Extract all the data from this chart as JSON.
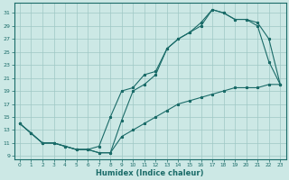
{
  "xlabel": "Humidex (Indice chaleur)",
  "bg_color": "#cce8e5",
  "grid_color": "#9fc8c4",
  "line_color": "#1a6b68",
  "xlim": [
    -0.5,
    23.5
  ],
  "ylim": [
    8.5,
    32.5
  ],
  "xticks": [
    0,
    1,
    2,
    3,
    4,
    5,
    6,
    7,
    8,
    9,
    10,
    11,
    12,
    13,
    14,
    15,
    16,
    17,
    18,
    19,
    20,
    21,
    22,
    23
  ],
  "yticks": [
    9,
    11,
    13,
    15,
    17,
    19,
    21,
    23,
    25,
    27,
    29,
    31
  ],
  "line1_x": [
    0,
    1,
    2,
    3,
    4,
    5,
    6,
    7,
    8,
    9,
    10,
    11,
    12,
    13,
    14,
    15,
    16,
    17,
    18,
    19,
    20,
    21,
    22,
    23
  ],
  "line1_y": [
    14,
    12.5,
    11,
    11,
    10.5,
    10,
    10,
    10.5,
    15,
    19,
    19.5,
    21.5,
    22,
    25.5,
    27,
    28,
    29,
    31.5,
    31,
    30,
    30,
    29,
    23.5,
    20
  ],
  "line2_x": [
    0,
    1,
    2,
    3,
    4,
    5,
    6,
    7,
    8,
    9,
    10,
    11,
    12,
    13,
    14,
    15,
    16,
    17,
    18,
    19,
    20,
    21,
    22,
    23
  ],
  "line2_y": [
    14,
    12.5,
    11,
    11,
    10.5,
    10,
    10,
    9.5,
    9.5,
    14.5,
    19,
    20,
    21.5,
    25.5,
    27,
    28,
    29.5,
    31.5,
    31,
    30,
    30,
    29.5,
    27,
    20
  ],
  "line3_x": [
    0,
    1,
    2,
    3,
    4,
    5,
    6,
    7,
    8,
    9,
    10,
    11,
    12,
    13,
    14,
    15,
    16,
    17,
    18,
    19,
    20,
    21,
    22,
    23
  ],
  "line3_y": [
    14,
    12.5,
    11,
    11,
    10.5,
    10,
    10,
    9.5,
    9.5,
    12,
    13,
    14,
    15,
    16,
    17,
    17.5,
    18,
    18.5,
    19,
    19.5,
    19.5,
    19.5,
    20,
    20
  ]
}
